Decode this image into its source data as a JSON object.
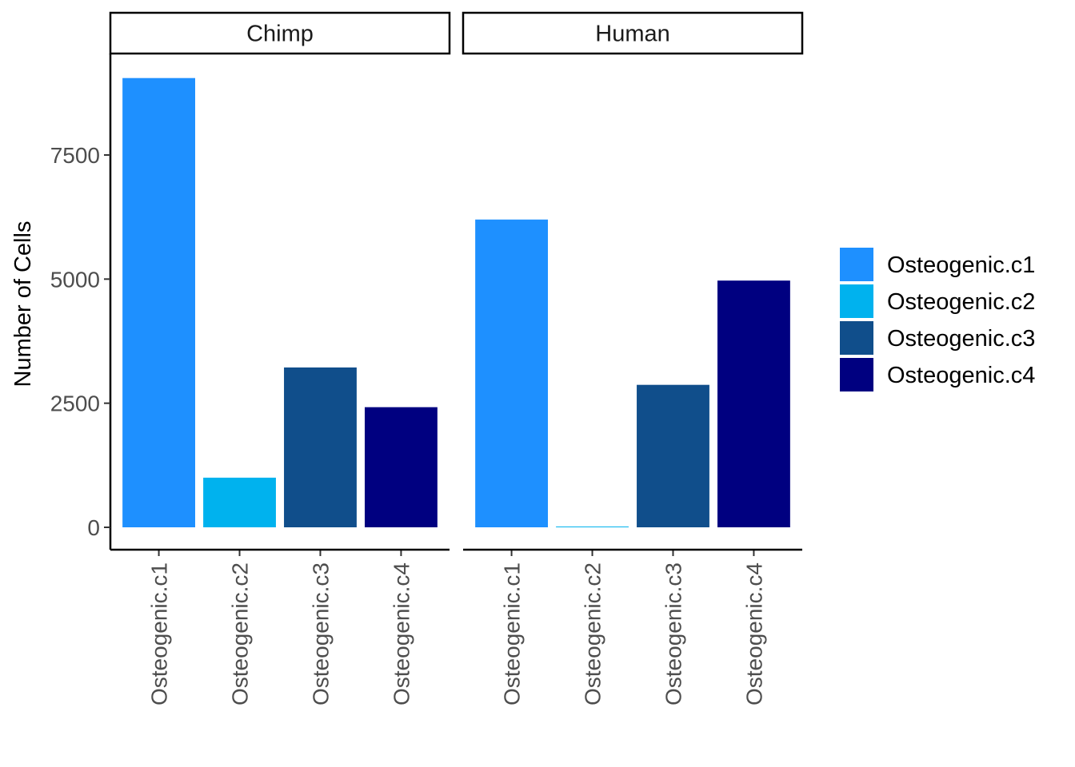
{
  "chart_data": {
    "type": "bar",
    "facets": [
      "Chimp",
      "Human"
    ],
    "categories": [
      "Osteogenic.c1",
      "Osteogenic.c2",
      "Osteogenic.c3",
      "Osteogenic.c4"
    ],
    "series": [
      {
        "facet": "Chimp",
        "values": [
          9050,
          1000,
          3220,
          2420
        ]
      },
      {
        "facet": "Human",
        "values": [
          6200,
          10,
          2870,
          4970
        ]
      }
    ],
    "colors": {
      "Osteogenic.c1": "#1E90FF",
      "Osteogenic.c2": "#00B2EE",
      "Osteogenic.c3": "#104E8B",
      "Osteogenic.c4": "#000080"
    },
    "xlabel": "",
    "ylabel": "Number of Cells",
    "yticks": [
      0,
      2500,
      5000,
      7500
    ],
    "ylim": [
      -450,
      9600
    ],
    "legend": {
      "position": "right",
      "entries": [
        "Osteogenic.c1",
        "Osteogenic.c2",
        "Osteogenic.c3",
        "Osteogenic.c4"
      ]
    },
    "grid": false
  }
}
